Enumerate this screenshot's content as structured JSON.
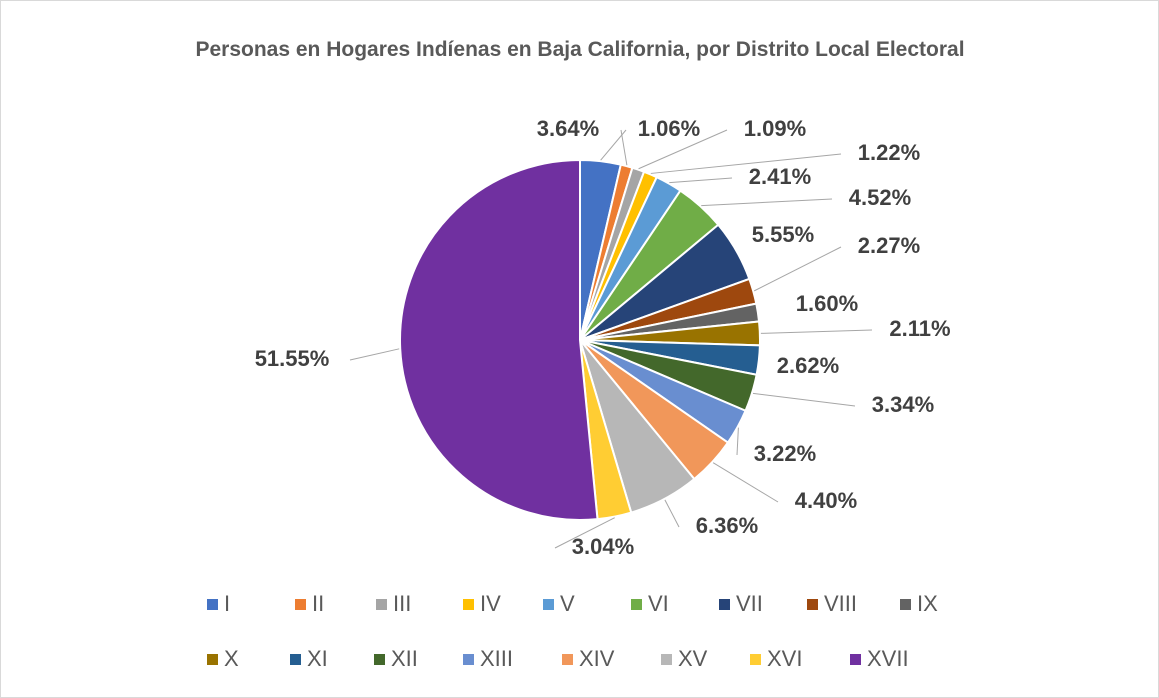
{
  "chart_data": {
    "type": "pie",
    "title": "Personas en Hogares Indíenas en Baja California, por Distrito Local Electoral",
    "categories": [
      "I",
      "II",
      "III",
      "IV",
      "V",
      "VI",
      "VII",
      "VIII",
      "IX",
      "X",
      "XI",
      "XII",
      "XIII",
      "XIV",
      "XV",
      "XVI",
      "XVII"
    ],
    "values": [
      3.64,
      1.06,
      1.09,
      1.22,
      2.41,
      4.52,
      5.55,
      2.27,
      1.6,
      2.11,
      2.62,
      3.34,
      3.22,
      4.4,
      6.36,
      3.04,
      51.55
    ],
    "value_labels": [
      "3.64%",
      "1.06%",
      "1.09%",
      "1.22%",
      "2.41%",
      "4.52%",
      "5.55%",
      "2.27%",
      "1.60%",
      "2.11%",
      "2.62%",
      "3.34%",
      "3.22%",
      "4.40%",
      "6.36%",
      "3.04%",
      "51.55%"
    ],
    "colors": [
      "#4472c4",
      "#ed7d31",
      "#a5a5a5",
      "#ffc000",
      "#5b9bd5",
      "#70ad47",
      "#264478",
      "#9e480e",
      "#636363",
      "#997300",
      "#255e91",
      "#43682b",
      "#698ed0",
      "#f1975a",
      "#b7b7b7",
      "#ffcd33",
      "#7030a0"
    ],
    "legend": "bottom"
  }
}
